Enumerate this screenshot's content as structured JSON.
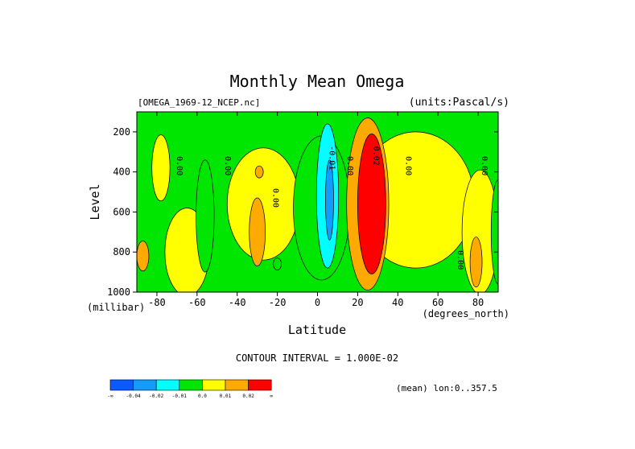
{
  "chart_data": {
    "type": "heatmap",
    "title": "Monthly Mean Omega",
    "subtitle_left": "[OMEGA_1969-12_NCEP.nc]",
    "subtitle_right": "(units:Pascal/s)",
    "xlabel": "Latitude",
    "ylabel": "Level",
    "x_unit": "(degrees_north)",
    "y_unit": "(millibar)",
    "x_ticks": [
      "-80",
      "-60",
      "-40",
      "-20",
      "0",
      "20",
      "40",
      "60",
      "80"
    ],
    "y_ticks": [
      "200",
      "400",
      "600",
      "800",
      "1000"
    ],
    "xlim": [
      -90,
      90
    ],
    "ylim": [
      1000,
      100
    ],
    "contour_interval_text": "CONTOUR INTERVAL = 1.000E-02",
    "contour_labels": [
      "0.00",
      "0.00",
      "0.00",
      "-0.01",
      "0.00",
      "0.02",
      "0.00",
      "0.00",
      "0.00"
    ],
    "legend": {
      "colors": [
        "#0a5aff",
        "#149bff",
        "#00ffff",
        "#00e600",
        "#ffff00",
        "#ffaa00",
        "#ff0000"
      ],
      "labels": [
        "-∞",
        "-0.04",
        "-0.02",
        "-0.01",
        "0.0",
        "0.01",
        "0.02",
        "∞"
      ]
    },
    "info_text": "(mean) lon:0..357.5",
    "fields": [
      {
        "value": 0.005,
        "lat": 49,
        "p": 540,
        "dlat": 58,
        "dp": 680
      },
      {
        "value": 0.005,
        "lat": -27,
        "p": 560,
        "dlat": 36,
        "dp": 560
      },
      {
        "value": 0.005,
        "lat": -78,
        "p": 380,
        "dlat": 9,
        "dp": 330
      },
      {
        "value": 0.005,
        "lat": -65,
        "p": 800,
        "dlat": 22,
        "dp": 440
      },
      {
        "value": 0.005,
        "lat": 81,
        "p": 700,
        "dlat": 18,
        "dp": 620
      },
      {
        "value": -0.005,
        "lat": 2,
        "p": 580,
        "dlat": 28,
        "dp": 720
      },
      {
        "value": -0.005,
        "lat": -56,
        "p": 620,
        "dlat": 9,
        "dp": 560
      },
      {
        "value": -0.005,
        "lat": 90,
        "p": 700,
        "dlat": 7,
        "dp": 520
      },
      {
        "value": -0.015,
        "lat": 5,
        "p": 520,
        "dlat": 11,
        "dp": 720
      },
      {
        "value": -0.025,
        "lat": 6,
        "p": 540,
        "dlat": 4,
        "dp": 400
      },
      {
        "value": 0.015,
        "lat": 25,
        "p": 560,
        "dlat": 21,
        "dp": 860
      },
      {
        "value": 0.025,
        "lat": 27,
        "p": 560,
        "dlat": 14,
        "dp": 700
      },
      {
        "value": 0.015,
        "lat": -30,
        "p": 700,
        "dlat": 8,
        "dp": 340
      },
      {
        "value": 0.015,
        "lat": -29,
        "p": 400,
        "dlat": 4,
        "dp": 60
      },
      {
        "value": 0.015,
        "lat": 79,
        "p": 850,
        "dlat": 6,
        "dp": 250
      },
      {
        "value": 0.015,
        "lat": -87,
        "p": 820,
        "dlat": 6,
        "dp": 150
      },
      {
        "value": -0.005,
        "lat": -20,
        "p": 860,
        "dlat": 4,
        "dp": 60
      }
    ]
  }
}
